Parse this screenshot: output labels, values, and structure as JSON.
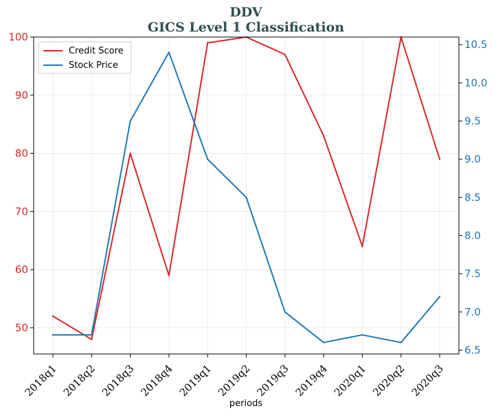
{
  "chart_data": {
    "type": "line",
    "title": "DDV",
    "subtitle": "GICS Level 1 Classification",
    "xlabel": "periods",
    "categories": [
      "2018q1",
      "2018q2",
      "2018q3",
      "2018q4",
      "2019q1",
      "2019q2",
      "2019q3",
      "2019q4",
      "2020q1",
      "2020q2",
      "2020q3"
    ],
    "series": [
      {
        "name": "Credit Score",
        "axis": "left",
        "color": "#d62728",
        "values": [
          52,
          48,
          80,
          59,
          99,
          100,
          97,
          83,
          64,
          100,
          79
        ]
      },
      {
        "name": "Stock Price",
        "axis": "right",
        "color": "#1f77b4",
        "values": [
          6.7,
          6.7,
          9.5,
          10.4,
          9.0,
          8.5,
          7.0,
          6.6,
          6.7,
          6.6,
          7.2
        ]
      }
    ],
    "y_left": {
      "ylim": [
        45.5,
        100
      ],
      "ticks": [
        50,
        60,
        70,
        80,
        90,
        100
      ],
      "color": "#d62728"
    },
    "y_right": {
      "ylim": [
        6.45,
        10.6
      ],
      "ticks": [
        "6.5",
        "7.0",
        "7.5",
        "8.0",
        "8.5",
        "9.0",
        "9.5",
        "10.0",
        "10.5"
      ],
      "color": "#1f77b4"
    },
    "grid": true,
    "legend_position": "top-left"
  }
}
